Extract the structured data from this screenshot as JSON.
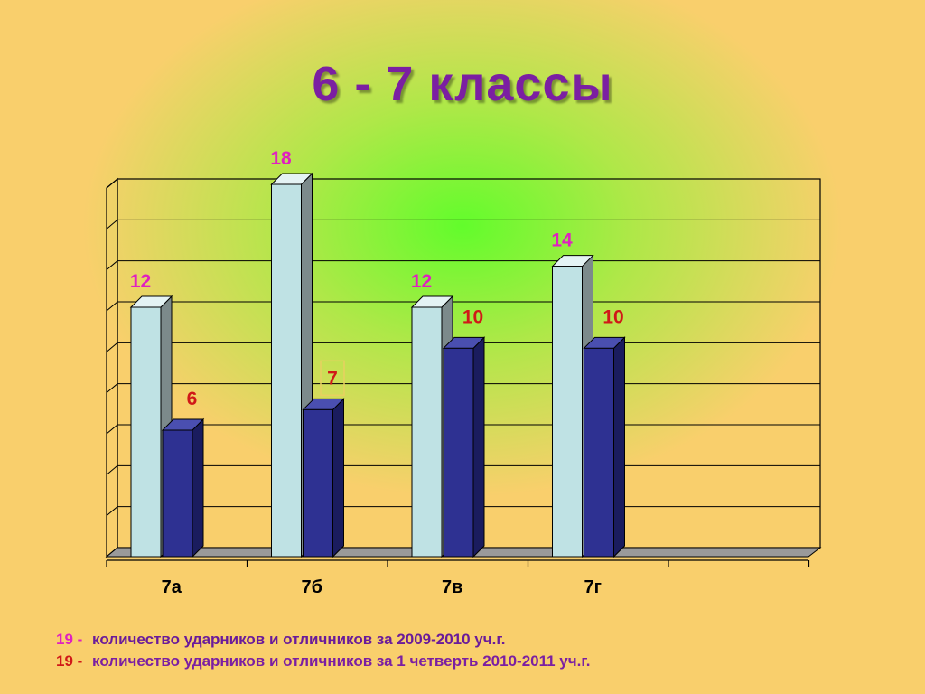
{
  "title": "6 - 7 классы",
  "chart_data": {
    "type": "bar",
    "categories": [
      "7а",
      "7б",
      "7в",
      "7г"
    ],
    "series": [
      {
        "values": [
          12,
          18,
          12,
          14
        ],
        "color": "#bfe2e4",
        "label_color": "#e020c0"
      },
      {
        "values": [
          6,
          7,
          10,
          10
        ],
        "color": "#2e3192",
        "label_color": "#d01818"
      }
    ],
    "ylim": [
      0,
      18
    ],
    "grid": true,
    "highlighted_label": {
      "series": 1,
      "index": 1
    }
  },
  "legend": [
    {
      "number": "19 -",
      "text": "количество ударников и отличников за 2009-2010 уч.г."
    },
    {
      "number": "19 -",
      "text": "количество ударников и отличников за 1 четверть 2010-2011 уч.г."
    }
  ]
}
